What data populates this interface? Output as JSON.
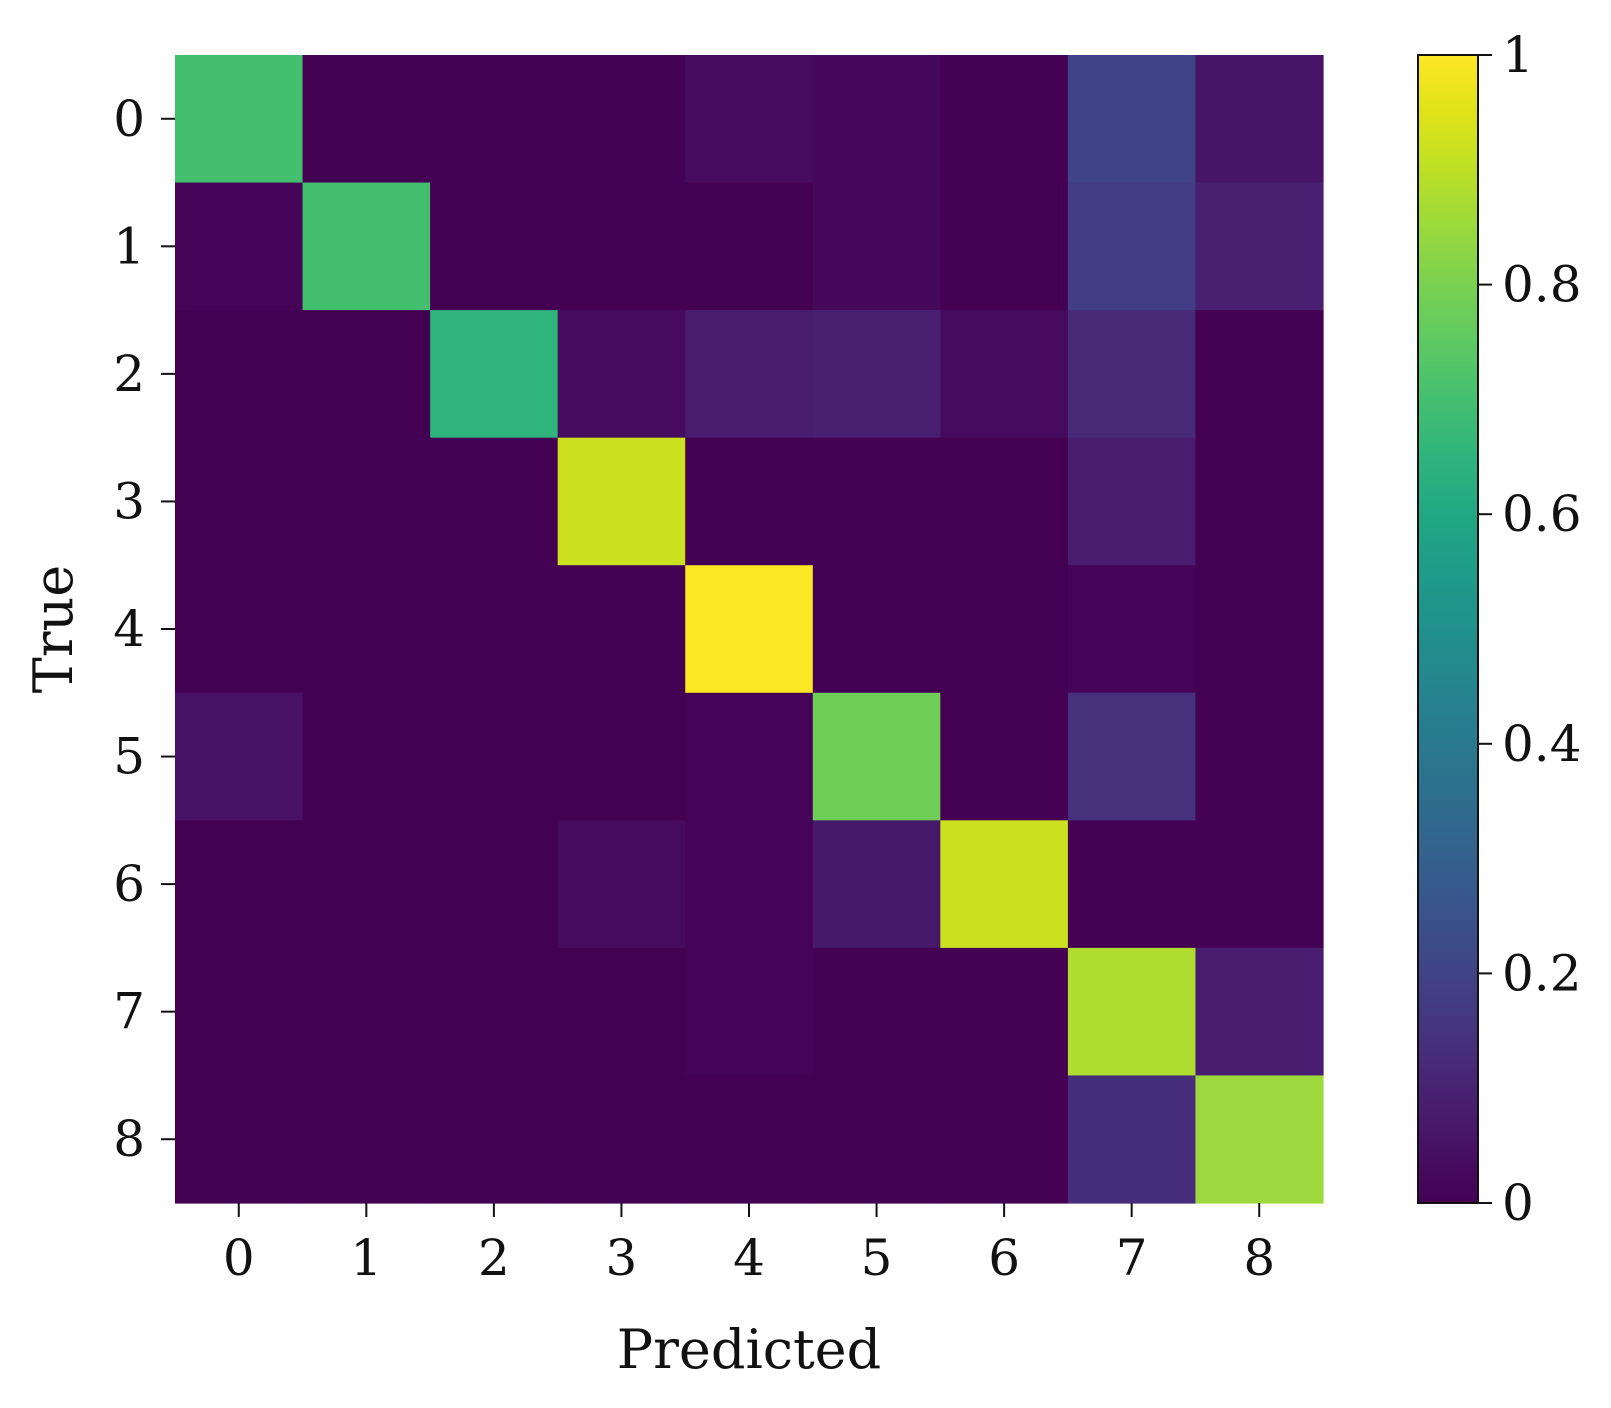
{
  "chart_data": {
    "type": "heatmap",
    "title": "",
    "xlabel": "Predicted",
    "ylabel": "True",
    "x_categories": [
      "0",
      "1",
      "2",
      "3",
      "4",
      "5",
      "6",
      "7",
      "8"
    ],
    "y_categories": [
      "0",
      "1",
      "2",
      "3",
      "4",
      "5",
      "6",
      "7",
      "8"
    ],
    "values": [
      [
        0.7,
        0.0,
        0.0,
        0.0,
        0.03,
        0.02,
        0.0,
        0.2,
        0.06
      ],
      [
        0.01,
        0.7,
        0.0,
        0.0,
        0.0,
        0.02,
        0.0,
        0.18,
        0.09
      ],
      [
        0.0,
        0.0,
        0.65,
        0.03,
        0.08,
        0.09,
        0.03,
        0.12,
        0.0
      ],
      [
        0.0,
        0.0,
        0.0,
        0.92,
        0.0,
        0.0,
        0.0,
        0.08,
        0.0
      ],
      [
        0.0,
        0.0,
        0.0,
        0.0,
        1.0,
        0.0,
        0.0,
        0.01,
        0.0
      ],
      [
        0.05,
        0.0,
        0.0,
        0.0,
        0.01,
        0.78,
        0.0,
        0.14,
        0.0
      ],
      [
        0.0,
        0.0,
        0.0,
        0.03,
        0.01,
        0.07,
        0.92,
        0.0,
        0.0
      ],
      [
        0.0,
        0.0,
        0.0,
        0.0,
        0.01,
        0.0,
        0.0,
        0.88,
        0.08
      ],
      [
        0.0,
        0.0,
        0.0,
        0.0,
        0.0,
        0.0,
        0.0,
        0.13,
        0.85
      ]
    ],
    "vmin": 0,
    "vmax": 1,
    "colormap": "viridis",
    "colorbar": {
      "ticks": [
        0,
        0.2,
        0.4,
        0.6,
        0.8,
        1
      ],
      "tick_labels": [
        "0",
        "0.2",
        "0.4",
        "0.6",
        "0.8",
        "1"
      ]
    },
    "grid": false,
    "legend": "none"
  }
}
